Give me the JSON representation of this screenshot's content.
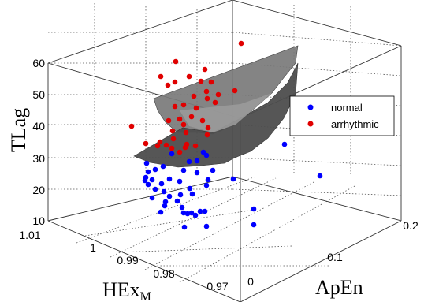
{
  "chart_data": {
    "type": "scatter",
    "dimensions": "3d",
    "zlabel": "TLag",
    "xlabel": "HEx",
    "xlabel_sub": "M",
    "ylabel": "ApEn",
    "z_ticks": [
      "10",
      "20",
      "30",
      "40",
      "50",
      "60"
    ],
    "x_ticks": [
      "1.01",
      "1",
      "0.99",
      "0.98",
      "0.97"
    ],
    "y_ticks": [
      "0",
      "0.1",
      "0.2"
    ],
    "legend_position": "right",
    "grid": true,
    "surface": "fitted separating surface",
    "series": [
      {
        "name": "normal",
        "color": "#0000ff",
        "points": [
          {
            "px": [
              258,
              193
            ]
          },
          {
            "px": [
              218,
              195
            ]
          },
          {
            "px": [
              262,
              197
            ]
          },
          {
            "px": [
              240,
              205
            ]
          },
          {
            "px": [
              250,
              204
            ]
          },
          {
            "px": [
              186,
              207
            ]
          },
          {
            "px": [
              207,
              211
            ]
          },
          {
            "px": [
              197,
              215
            ]
          },
          {
            "px": [
              233,
              216
            ]
          },
          {
            "px": [
              188,
              218
            ]
          },
          {
            "px": [
              250,
              219
            ]
          },
          {
            "px": [
              270,
              216
            ]
          },
          {
            "px": [
              185,
              225
            ]
          },
          {
            "px": [
              193,
              228
            ]
          },
          {
            "px": [
              215,
              227
            ]
          },
          {
            "px": [
              184,
              229
            ]
          },
          {
            "px": [
              228,
              230
            ]
          },
          {
            "px": [
              264,
              228
            ]
          },
          {
            "px": [
              188,
              234
            ]
          },
          {
            "px": [
              262,
              235
            ]
          },
          {
            "px": [
              205,
              233
            ]
          },
          {
            "px": [
              197,
              240
            ]
          },
          {
            "px": [
              241,
              239
            ]
          },
          {
            "px": [
              208,
              243
            ]
          },
          {
            "px": [
              229,
              247
            ]
          },
          {
            "px": [
              244,
              246
            ]
          },
          {
            "px": [
              215,
              249
            ]
          },
          {
            "px": [
              193,
              251
            ]
          },
          {
            "px": [
              210,
              256
            ]
          },
          {
            "px": [
              225,
              255
            ]
          },
          {
            "px": [
              209,
              261
            ]
          },
          {
            "px": [
              231,
              263
            ]
          },
          {
            "px": [
              233,
              270
            ]
          },
          {
            "px": [
              260,
              268
            ]
          },
          {
            "px": [
              254,
              268
            ]
          },
          {
            "px": [
              243,
              270
            ]
          },
          {
            "px": [
              238,
              271
            ]
          },
          {
            "px": [
              248,
              273
            ]
          },
          {
            "px": [
              204,
              269
            ]
          },
          {
            "px": [
              262,
              287
            ]
          },
          {
            "px": [
              234,
              288
            ]
          },
          {
            "px": [
              296,
              227
            ]
          },
          {
            "px": [
              322,
              265
            ]
          },
          {
            "px": [
              322,
              285
            ]
          },
          {
            "px": [
              361,
              183
            ]
          },
          {
            "px": [
              406,
              223
            ]
          }
        ]
      },
      {
        "name": "arrhythmic",
        "color": "#e00000",
        "points": [
          {
            "px": [
              306,
              55
            ]
          },
          {
            "px": [
              260,
              88
            ]
          },
          {
            "px": [
              223,
              78
            ]
          },
          {
            "px": [
              204,
              97
            ]
          },
          {
            "px": [
              222,
              104
            ]
          },
          {
            "px": [
              240,
              97
            ]
          },
          {
            "px": [
              213,
              108
            ]
          },
          {
            "px": [
              268,
              104
            ]
          },
          {
            "px": [
              255,
              103
            ]
          },
          {
            "px": [
              298,
              115
            ]
          },
          {
            "px": [
              262,
              116
            ]
          },
          {
            "px": [
              273,
              130
            ]
          },
          {
            "px": [
              263,
              125
            ]
          },
          {
            "px": [
              277,
              120
            ]
          },
          {
            "px": [
              246,
              122
            ]
          },
          {
            "px": [
              222,
              135
            ]
          },
          {
            "px": [
              243,
              148
            ]
          },
          {
            "px": [
              228,
              151
            ]
          },
          {
            "px": [
              233,
              158
            ]
          },
          {
            "px": [
              257,
              153
            ]
          },
          {
            "px": [
              214,
              153
            ]
          },
          {
            "px": [
              236,
              168
            ]
          },
          {
            "px": [
              219,
              166
            ]
          },
          {
            "px": [
              249,
              137
            ]
          },
          {
            "px": [
              167,
              160
            ]
          },
          {
            "px": [
              264,
              162
            ]
          },
          {
            "px": [
              220,
              176
            ]
          },
          {
            "px": [
              211,
              184
            ]
          },
          {
            "px": [
              200,
              185
            ]
          },
          {
            "px": [
              218,
              188
            ]
          },
          {
            "px": [
              236,
              186
            ]
          },
          {
            "px": [
              237,
              183
            ]
          },
          {
            "px": [
              228,
              193
            ]
          },
          {
            "px": [
              235,
              187
            ]
          },
          {
            "px": [
              248,
              185
            ]
          },
          {
            "px": [
              203,
              180
            ]
          },
          {
            "px": [
              185,
              182
            ]
          },
          {
            "px": [
              263,
              171
            ]
          },
          {
            "px": [
              233,
              133
            ]
          }
        ]
      }
    ]
  }
}
